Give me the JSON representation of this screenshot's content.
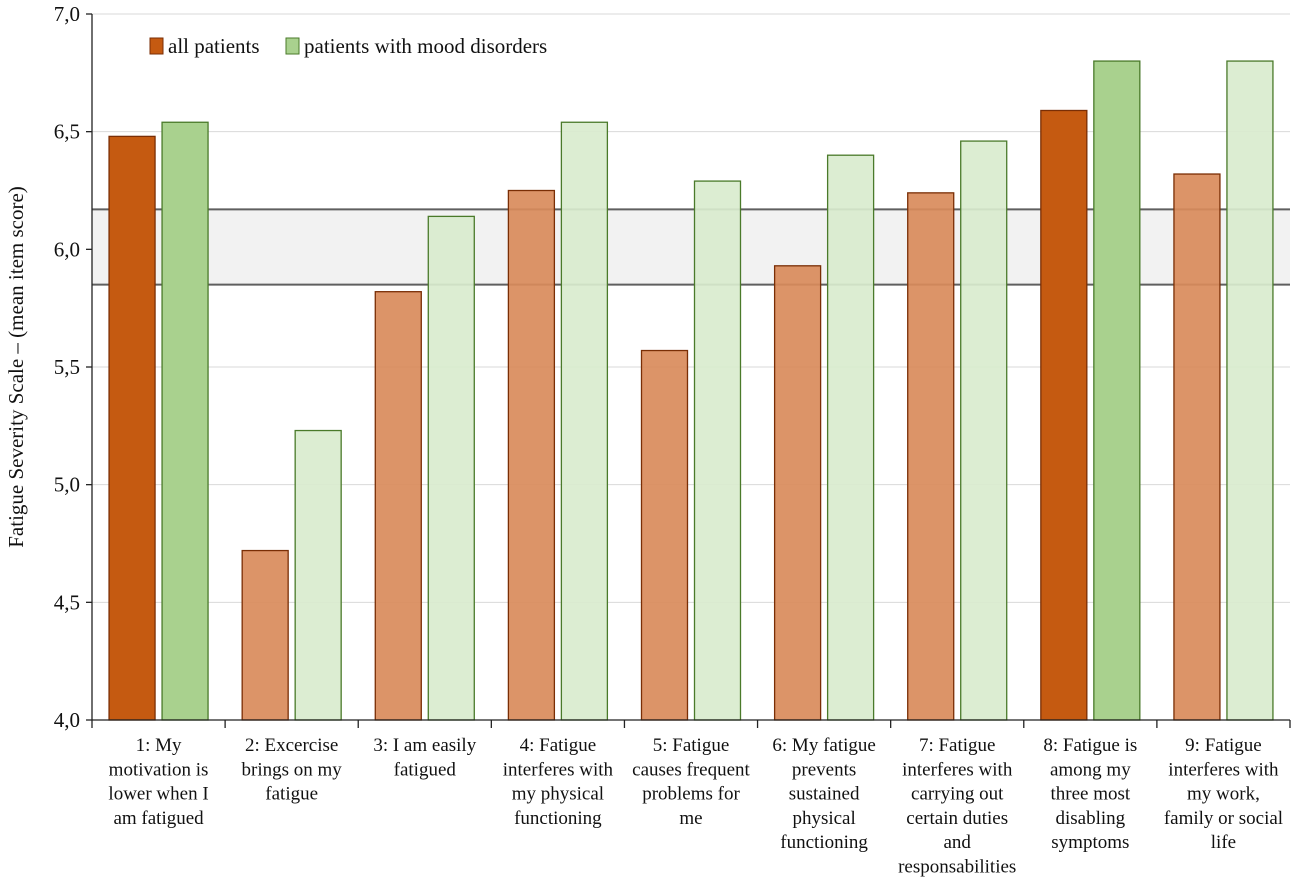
{
  "chart_data": {
    "type": "bar",
    "ylabel": "Fatigue Severity Scale – (mean item score)",
    "ylim": [
      4.0,
      7.0
    ],
    "yticks": [
      "4,0",
      "4,5",
      "5,0",
      "5,5",
      "6,0",
      "6,5",
      "7,0"
    ],
    "ytick_values": [
      4.0,
      4.5,
      5.0,
      5.5,
      6.0,
      6.5,
      7.0
    ],
    "categories": [
      [
        "1: My",
        "motivation is",
        "lower when I",
        "am fatigued"
      ],
      [
        "2: Excercise",
        "brings on my",
        "fatigue"
      ],
      [
        "3: I am easily",
        "fatigued"
      ],
      [
        "4: Fatigue",
        "interferes with",
        "my physical",
        "functioning"
      ],
      [
        "5: Fatigue",
        "causes frequent",
        "problems for",
        "me"
      ],
      [
        "6: My fatigue",
        "prevents",
        "sustained",
        "physical",
        "functioning"
      ],
      [
        "7: Fatigue",
        "interferes with",
        "carrying out",
        "certain duties",
        "and",
        "responsabilities"
      ],
      [
        "8: Fatigue is",
        "among my",
        "three most",
        "disabling",
        "symptoms"
      ],
      [
        "9: Fatigue",
        "interferes with",
        "my work,",
        "family or social",
        "life"
      ]
    ],
    "highlighted": [
      true,
      false,
      false,
      false,
      false,
      false,
      false,
      true,
      false
    ],
    "series": [
      {
        "name": "all patients",
        "values": [
          6.48,
          4.72,
          5.82,
          6.25,
          5.57,
          5.93,
          6.24,
          6.59,
          6.32
        ],
        "color": "#c55a11",
        "color_light": "#d98b5b",
        "stroke": "#7a2e05"
      },
      {
        "name": "patients with mood disorders",
        "values": [
          6.54,
          5.23,
          6.14,
          6.54,
          6.29,
          6.4,
          6.46,
          6.8,
          6.8
        ],
        "color": "#a9d18e",
        "color_light": "#d9ecce",
        "stroke": "#4a7a2a"
      }
    ],
    "reference_band": {
      "low": 5.85,
      "high": 6.17
    },
    "legend_position": "top-left",
    "grid": true
  }
}
